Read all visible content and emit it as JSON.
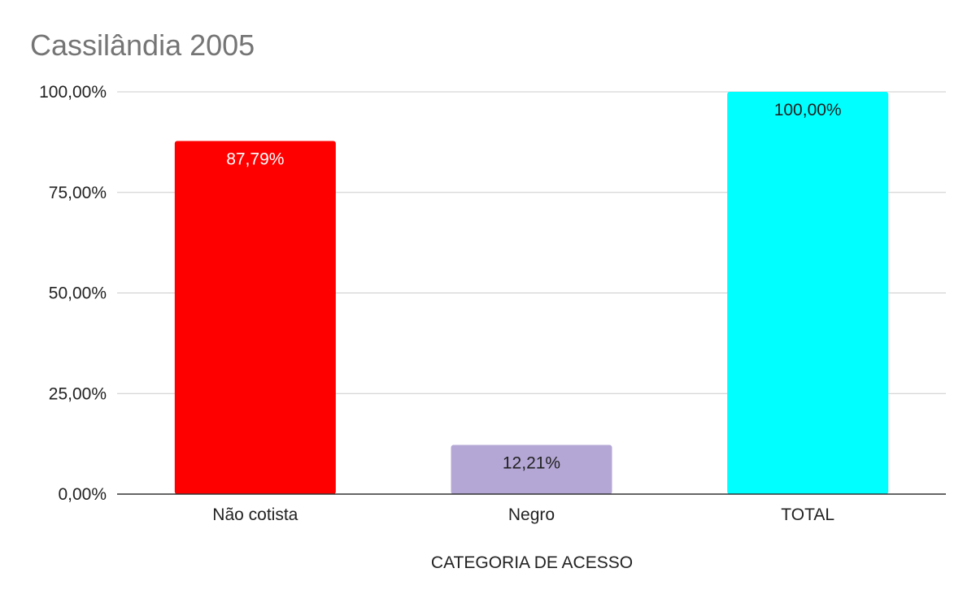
{
  "chart_data": {
    "type": "bar",
    "title": "Cassilândia 2005",
    "xlabel": "CATEGORIA DE ACESSO",
    "ylabel": "",
    "categories": [
      "Não cotista",
      "Negro",
      "TOTAL"
    ],
    "values": [
      87.79,
      12.21,
      100.0
    ],
    "data_labels": [
      "87,79%",
      "12,21%",
      "100,00%"
    ],
    "bar_colors": [
      "#ff0000",
      "#b4a7d6",
      "#00ffff"
    ],
    "label_colors": [
      "#ffffff",
      "#222222",
      "#222222"
    ],
    "ylim": [
      0,
      100
    ],
    "yticks": [
      0,
      25,
      50,
      75,
      100
    ],
    "ytick_labels": [
      "0,00%",
      "25,00%",
      "50,00%",
      "75,00%",
      "100,00%"
    ],
    "grid": true,
    "legend": "none"
  }
}
